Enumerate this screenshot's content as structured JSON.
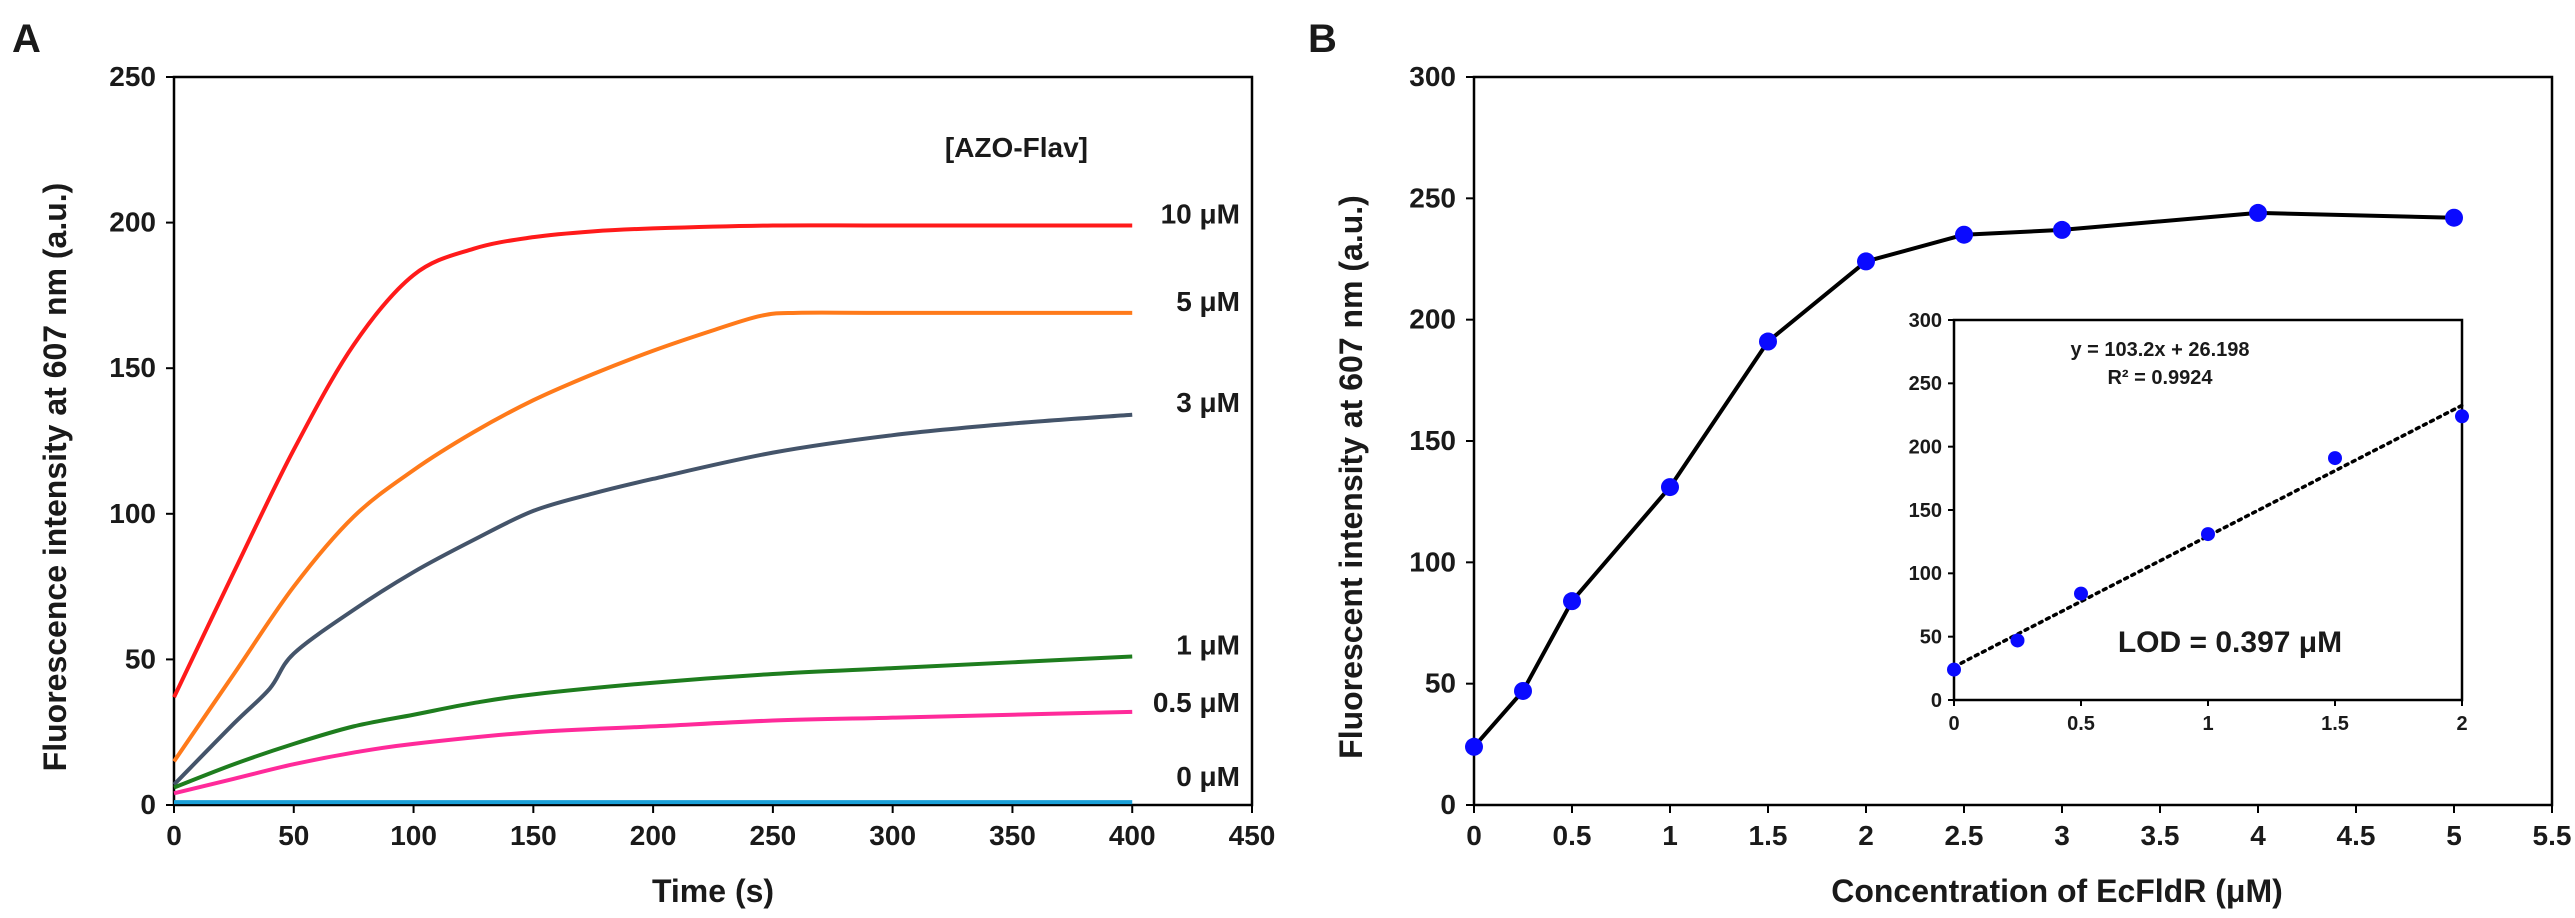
{
  "chart_data": [
    {
      "panel": "A",
      "type": "line",
      "xlabel": "Time (s)",
      "ylabel": "Fluorescence intensity at 607 nm (a.u.)",
      "xlim": [
        0,
        450
      ],
      "ylim": [
        0,
        250
      ],
      "xticks": [
        "0",
        "50",
        "100",
        "150",
        "200",
        "250",
        "300",
        "350",
        "400",
        "450"
      ],
      "yticks": [
        "0",
        "50",
        "100",
        "150",
        "200",
        "250"
      ],
      "legend_title": "[AZO-Flav]",
      "series": [
        {
          "name": "10 μM",
          "color": "#ff1a1a",
          "x": [
            0,
            25,
            50,
            75,
            100,
            125,
            150,
            175,
            200,
            250,
            300,
            400
          ],
          "y": [
            37,
            80,
            122,
            158,
            182,
            191,
            195,
            197,
            198,
            199,
            199,
            199
          ]
        },
        {
          "name": "5 μM",
          "color": "#ff7a1a",
          "x": [
            0,
            25,
            50,
            75,
            100,
            125,
            150,
            175,
            200,
            225,
            245,
            260,
            300,
            400
          ],
          "y": [
            15,
            45,
            75,
            99,
            115,
            128,
            139,
            148,
            156,
            163,
            168,
            169,
            169,
            169
          ]
        },
        {
          "name": "3 μM",
          "color": "#44546a",
          "x": [
            0,
            25,
            40,
            50,
            75,
            100,
            125,
            150,
            175,
            200,
            250,
            300,
            350,
            400
          ],
          "y": [
            7,
            28,
            40,
            52,
            67,
            80,
            91,
            101,
            107,
            112,
            121,
            127,
            131,
            134
          ]
        },
        {
          "name": "1 μM",
          "color": "#1e7d1e",
          "x": [
            0,
            25,
            50,
            75,
            100,
            125,
            150,
            200,
            250,
            300,
            350,
            400
          ],
          "y": [
            6,
            14,
            21,
            27,
            31,
            35,
            38,
            42,
            45,
            47,
            49,
            51
          ]
        },
        {
          "name": "0.5 μM",
          "color": "#ff2a9a",
          "x": [
            0,
            25,
            50,
            75,
            100,
            150,
            200,
            250,
            300,
            350,
            400
          ],
          "y": [
            4,
            9,
            14,
            18,
            21,
            25,
            27,
            29,
            30,
            31,
            32
          ]
        },
        {
          "name": "0 μM",
          "color": "#1aa0d8",
          "x": [
            0,
            100,
            200,
            300,
            400
          ],
          "y": [
            1,
            1,
            1,
            1,
            1
          ]
        }
      ]
    },
    {
      "panel": "B",
      "type": "line",
      "xlabel": "Concentration of EcFldR (μM)",
      "ylabel": "Fluorescent intensity at 607 nm (a.u.)",
      "xlim": [
        0,
        5.5
      ],
      "ylim": [
        0,
        300
      ],
      "xticks": [
        "0",
        "0.5",
        "1",
        "1.5",
        "2",
        "2.5",
        "3",
        "3.5",
        "4",
        "4.5",
        "5",
        "5.5"
      ],
      "yticks": [
        "0",
        "50",
        "100",
        "150",
        "200",
        "250",
        "300"
      ],
      "series": [
        {
          "name": "EcFldR",
          "color": "#0a0aff",
          "x": [
            0,
            0.25,
            0.5,
            1,
            1.5,
            2,
            2.5,
            3,
            4,
            5
          ],
          "y": [
            24,
            47,
            84,
            131,
            191,
            224,
            235,
            237,
            244,
            242
          ]
        }
      ],
      "inset": {
        "type": "scatter",
        "xlim": [
          0,
          2
        ],
        "ylim": [
          0,
          300
        ],
        "xticks": [
          "0",
          "0.5",
          "1",
          "1.5",
          "2"
        ],
        "yticks": [
          "0",
          "50",
          "100",
          "150",
          "200",
          "250",
          "300"
        ],
        "points": {
          "x": [
            0,
            0.25,
            0.5,
            1,
            1.5,
            2
          ],
          "y": [
            24,
            47,
            84,
            131,
            191,
            224
          ]
        },
        "trendline": {
          "slope": 103.2,
          "intercept": 26.198
        },
        "equation": "y = 103.2x + 26.198",
        "r2": "R² = 0.9924",
        "annotation": "LOD = 0.397 μM"
      }
    }
  ]
}
